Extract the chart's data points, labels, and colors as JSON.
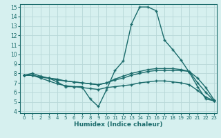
{
  "title": "",
  "xlabel": "Humidex (Indice chaleur)",
  "ylabel": "",
  "bg_color": "#d6f0ef",
  "line_color": "#1a6b6b",
  "grid_color": "#b8d8d8",
  "xlim": [
    -0.5,
    23.3
  ],
  "ylim": [
    3.8,
    15.3
  ],
  "xticks": [
    0,
    1,
    2,
    3,
    4,
    5,
    6,
    7,
    8,
    9,
    10,
    11,
    12,
    13,
    14,
    15,
    16,
    17,
    18,
    19,
    20,
    21,
    22,
    23
  ],
  "yticks": [
    4,
    5,
    6,
    7,
    8,
    9,
    10,
    11,
    12,
    13,
    14,
    15
  ],
  "series": [
    {
      "x": [
        0,
        1,
        2,
        3,
        4,
        5,
        6,
        7,
        8,
        9,
        10,
        11,
        12,
        13,
        14,
        15,
        16,
        17,
        18,
        19,
        20,
        21,
        22,
        23
      ],
      "y": [
        7.8,
        8.0,
        7.7,
        7.5,
        7.1,
        6.6,
        6.6,
        6.6,
        5.3,
        4.5,
        6.3,
        8.3,
        9.3,
        13.2,
        15.0,
        15.0,
        14.6,
        11.5,
        10.5,
        9.4,
        8.1,
        6.6,
        5.3,
        5.1
      ]
    },
    {
      "x": [
        0,
        1,
        2,
        3,
        4,
        5,
        6,
        7,
        8,
        9,
        10,
        11,
        12,
        13,
        14,
        15,
        16,
        17,
        18,
        19,
        20,
        21,
        22,
        23
      ],
      "y": [
        7.8,
        7.8,
        7.6,
        7.5,
        7.3,
        7.2,
        7.1,
        7.0,
        6.9,
        6.8,
        7.0,
        7.3,
        7.5,
        7.8,
        8.0,
        8.2,
        8.3,
        8.3,
        8.3,
        8.3,
        8.2,
        7.5,
        6.5,
        5.2
      ]
    },
    {
      "x": [
        0,
        1,
        2,
        3,
        4,
        5,
        6,
        7,
        8,
        9,
        10,
        11,
        12,
        13,
        14,
        15,
        16,
        17,
        18,
        19,
        20,
        21,
        22,
        23
      ],
      "y": [
        7.8,
        7.8,
        7.6,
        7.5,
        7.4,
        7.2,
        7.1,
        7.0,
        6.9,
        6.8,
        7.0,
        7.4,
        7.7,
        8.0,
        8.2,
        8.4,
        8.5,
        8.5,
        8.5,
        8.4,
        8.2,
        7.0,
        6.0,
        5.1
      ]
    },
    {
      "x": [
        0,
        1,
        2,
        3,
        4,
        5,
        6,
        7,
        8,
        9,
        10,
        11,
        12,
        13,
        14,
        15,
        16,
        17,
        18,
        19,
        20,
        21,
        22,
        23
      ],
      "y": [
        7.8,
        7.8,
        7.5,
        7.2,
        6.9,
        6.7,
        6.6,
        6.5,
        6.4,
        6.3,
        6.5,
        6.6,
        6.7,
        6.8,
        7.0,
        7.1,
        7.2,
        7.2,
        7.1,
        7.0,
        6.8,
        6.2,
        5.5,
        5.1
      ]
    }
  ]
}
